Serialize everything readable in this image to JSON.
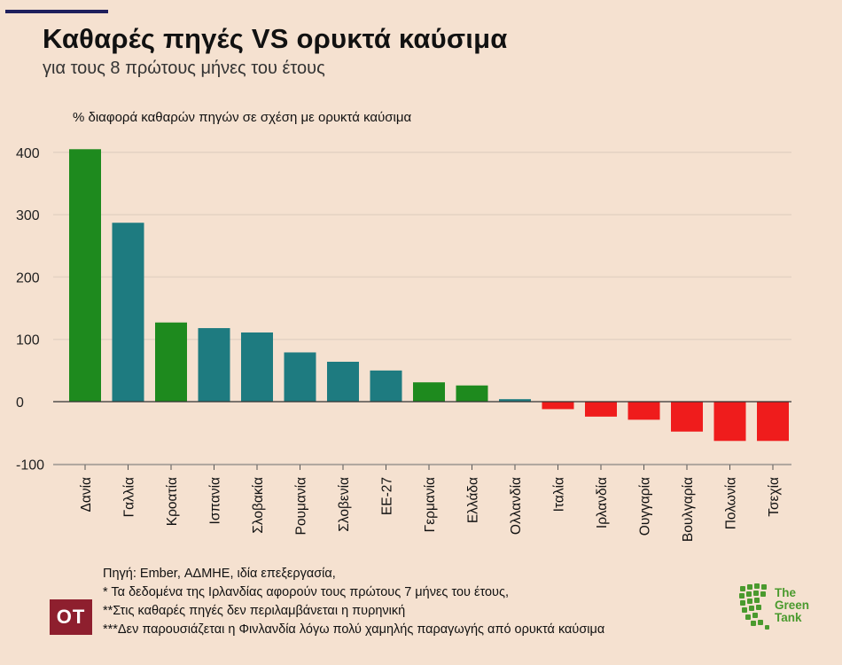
{
  "header": {
    "title": "Καθαρές πηγές VS ορυκτά καύσιμα",
    "subtitle": "για τους 8 πρώτους μήνες του έτους"
  },
  "colors": {
    "green": "#1e8a1e",
    "teal": "#1e7b80",
    "red": "#ef1c1c",
    "grid": "#e4d2c3",
    "background": "#f5e1d0"
  },
  "chart_data": {
    "type": "bar",
    "title": "Καθαρές πηγές VS ορυκτά καύσιμα",
    "ylabel": "% διαφορά καθαρών πηγών σε σχέση με ορυκτά καύσιμα",
    "xlabel": "",
    "ylim": [
      -100,
      400
    ],
    "yticks": [
      -100,
      0,
      100,
      200,
      300,
      400
    ],
    "ytick_labels": [
      "-100",
      "0",
      "100",
      "200",
      "300",
      "400"
    ],
    "categories": [
      "Δανία",
      "Γαλλία",
      "Κροατία",
      "Ισπανία",
      "Σλοβακία",
      "Ρουμανία",
      "Σλοβενία",
      "ΕΕ-27",
      "Γερμανία",
      "Ελλάδα",
      "Ολλανδία",
      "Ιταλία",
      "Ιρλανδία",
      "Ουγγαρία",
      "Βουλγαρία",
      "Πολωνία",
      "Τσεχία"
    ],
    "values": [
      405,
      287,
      127,
      118,
      111,
      79,
      64,
      50,
      31,
      26,
      4,
      -12,
      -24,
      -29,
      -48,
      -63,
      -63
    ],
    "bar_colors": [
      "green",
      "teal",
      "green",
      "teal",
      "teal",
      "teal",
      "teal",
      "teal",
      "green",
      "green",
      "teal",
      "red",
      "red",
      "red",
      "red",
      "red",
      "red"
    ],
    "grid": true
  },
  "footer": {
    "source_lines": [
      "Πηγή: Ember, ΑΔΜΗΕ, ιδία επεξεργασία,",
      "* Τα δεδομένα της Ιρλανδίας αφορούν τους πρώτους 7 μήνες του έτους,",
      "**Στις καθαρές πηγές δεν περιλαμβάνεται η πυρηνική",
      "***Δεν παρουσιάζεται η Φινλανδία λόγω πολύ χαμηλής παραγωγής από ορυκτά καύσιμα"
    ],
    "logo_left": "OT",
    "logo_right_lines": [
      "The",
      "Green",
      "Tank"
    ]
  }
}
